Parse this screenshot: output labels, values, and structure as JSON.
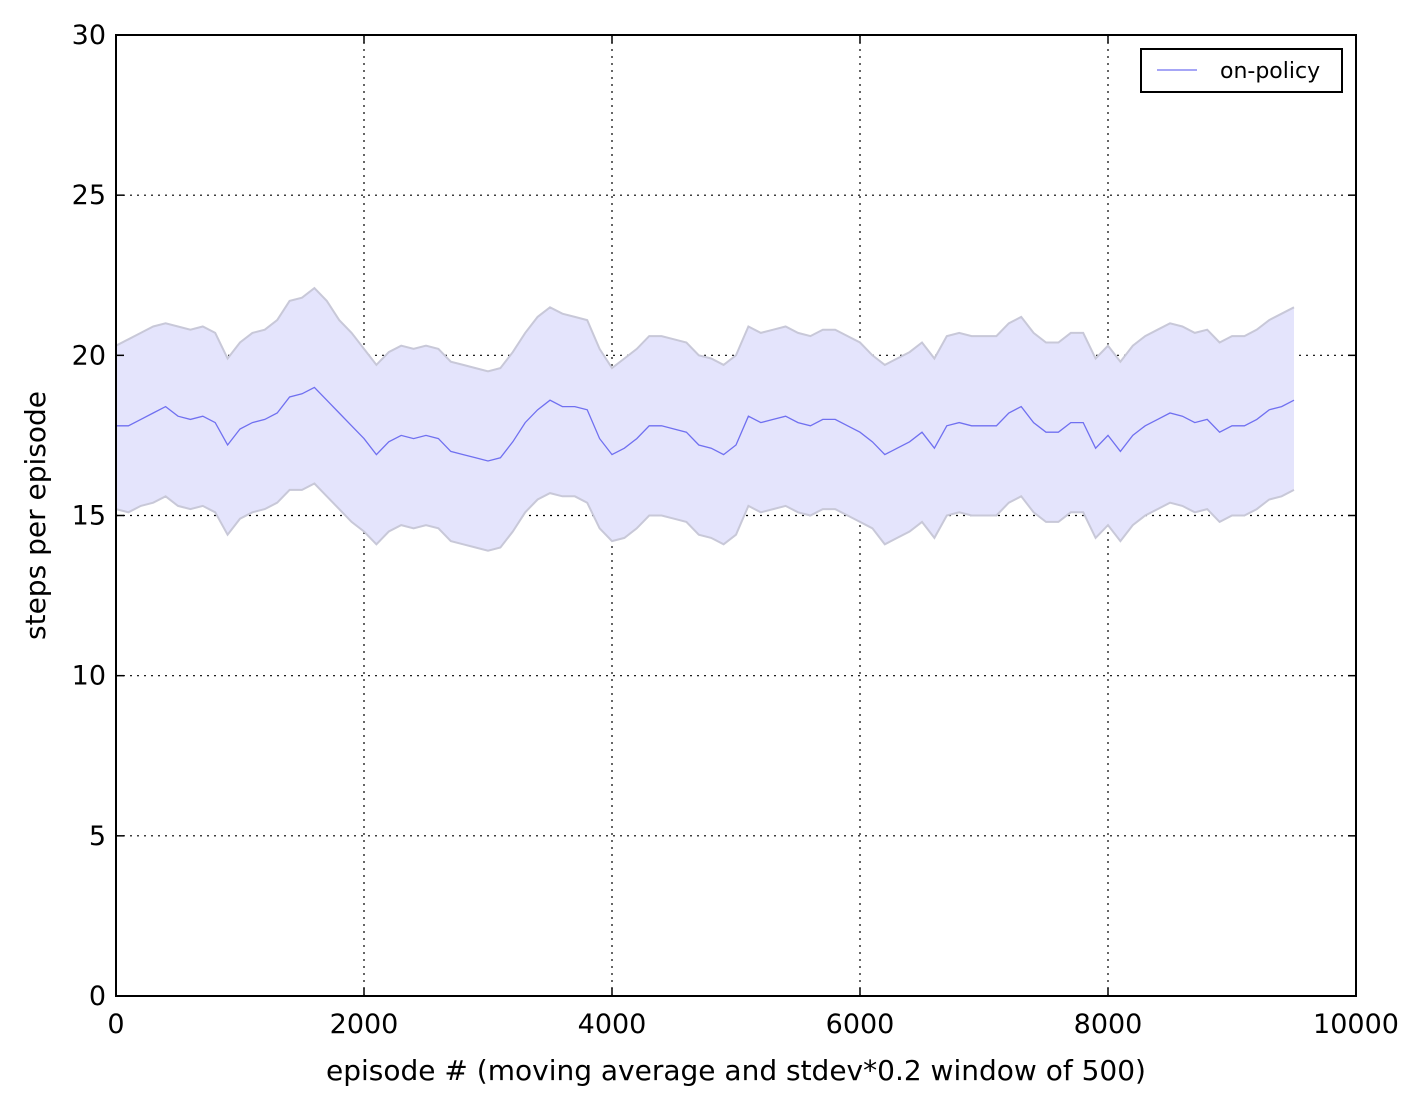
{
  "chart_data": {
    "type": "line",
    "title": "",
    "xlabel": "episode # (moving average and stdev*0.2 window of 500)",
    "ylabel": "steps per episode",
    "xlim": [
      0,
      10000
    ],
    "ylim": [
      0,
      30
    ],
    "xticks": [
      0,
      2000,
      4000,
      6000,
      8000,
      10000
    ],
    "xtick_labels": [
      "0",
      "2000",
      "4000",
      "6000",
      "8000",
      "10000"
    ],
    "yticks": [
      0,
      5,
      10,
      15,
      20,
      25,
      30
    ],
    "ytick_labels": [
      "0",
      "5",
      "10",
      "15",
      "20",
      "25",
      "30"
    ],
    "grid": true,
    "legend_position": "top-right",
    "series": [
      {
        "name": "on-policy",
        "line_color": "#7070f0",
        "band_color": "#e4e4fc",
        "band_edge_color": "#c8c8d8",
        "x": [
          0,
          100,
          200,
          300,
          400,
          500,
          600,
          700,
          800,
          900,
          1000,
          1100,
          1200,
          1300,
          1400,
          1500,
          1600,
          1700,
          1800,
          1900,
          2000,
          2100,
          2200,
          2300,
          2400,
          2500,
          2600,
          2700,
          2800,
          2900,
          3000,
          3100,
          3200,
          3300,
          3400,
          3500,
          3600,
          3700,
          3800,
          3900,
          4000,
          4100,
          4200,
          4300,
          4400,
          4500,
          4600,
          4700,
          4800,
          4900,
          5000,
          5100,
          5200,
          5300,
          5400,
          5500,
          5600,
          5700,
          5800,
          5900,
          6000,
          6100,
          6200,
          6300,
          6400,
          6500,
          6600,
          6700,
          6800,
          6900,
          7000,
          7100,
          7200,
          7300,
          7400,
          7500,
          7600,
          7700,
          7800,
          7900,
          8000,
          8100,
          8200,
          8300,
          8400,
          8500,
          8600,
          8700,
          8800,
          8900,
          9000,
          9100,
          9200,
          9300,
          9400,
          9500
        ],
        "mean": [
          17.8,
          17.8,
          18.0,
          18.2,
          18.4,
          18.1,
          18.0,
          18.1,
          17.9,
          17.2,
          17.7,
          17.9,
          18.0,
          18.2,
          18.7,
          18.8,
          19.0,
          18.6,
          18.2,
          17.8,
          17.4,
          16.9,
          17.3,
          17.5,
          17.4,
          17.5,
          17.4,
          17.0,
          16.9,
          16.8,
          16.7,
          16.8,
          17.3,
          17.9,
          18.3,
          18.6,
          18.4,
          18.4,
          18.3,
          17.4,
          16.9,
          17.1,
          17.4,
          17.8,
          17.8,
          17.7,
          17.6,
          17.2,
          17.1,
          16.9,
          17.2,
          18.1,
          17.9,
          18.0,
          18.1,
          17.9,
          17.8,
          18.0,
          18.0,
          17.8,
          17.6,
          17.3,
          16.9,
          17.1,
          17.3,
          17.6,
          17.1,
          17.8,
          17.9,
          17.8,
          17.8,
          17.8,
          18.2,
          18.4,
          17.9,
          17.6,
          17.6,
          17.9,
          17.9,
          17.1,
          17.5,
          17.0,
          17.5,
          17.8,
          18.0,
          18.2,
          18.1,
          17.9,
          18.0,
          17.6,
          17.8,
          17.8,
          18.0,
          18.3,
          18.4,
          18.6
        ],
        "upper": [
          20.3,
          20.5,
          20.7,
          20.9,
          21.0,
          20.9,
          20.8,
          20.9,
          20.7,
          19.9,
          20.4,
          20.7,
          20.8,
          21.1,
          21.7,
          21.8,
          22.1,
          21.7,
          21.1,
          20.7,
          20.2,
          19.7,
          20.1,
          20.3,
          20.2,
          20.3,
          20.2,
          19.8,
          19.7,
          19.6,
          19.5,
          19.6,
          20.1,
          20.7,
          21.2,
          21.5,
          21.3,
          21.2,
          21.1,
          20.2,
          19.6,
          19.9,
          20.2,
          20.6,
          20.6,
          20.5,
          20.4,
          20.0,
          19.9,
          19.7,
          20.0,
          20.9,
          20.7,
          20.8,
          20.9,
          20.7,
          20.6,
          20.8,
          20.8,
          20.6,
          20.4,
          20.0,
          19.7,
          19.9,
          20.1,
          20.4,
          19.9,
          20.6,
          20.7,
          20.6,
          20.6,
          20.6,
          21.0,
          21.2,
          20.7,
          20.4,
          20.4,
          20.7,
          20.7,
          19.9,
          20.3,
          19.8,
          20.3,
          20.6,
          20.8,
          21.0,
          20.9,
          20.7,
          20.8,
          20.4,
          20.6,
          20.6,
          20.8,
          21.1,
          21.3,
          21.5
        ],
        "lower": [
          15.2,
          15.1,
          15.3,
          15.4,
          15.6,
          15.3,
          15.2,
          15.3,
          15.1,
          14.4,
          14.9,
          15.1,
          15.2,
          15.4,
          15.8,
          15.8,
          16.0,
          15.6,
          15.2,
          14.8,
          14.5,
          14.1,
          14.5,
          14.7,
          14.6,
          14.7,
          14.6,
          14.2,
          14.1,
          14.0,
          13.9,
          14.0,
          14.5,
          15.1,
          15.5,
          15.7,
          15.6,
          15.6,
          15.4,
          14.6,
          14.2,
          14.3,
          14.6,
          15.0,
          15.0,
          14.9,
          14.8,
          14.4,
          14.3,
          14.1,
          14.4,
          15.3,
          15.1,
          15.2,
          15.3,
          15.1,
          15.0,
          15.2,
          15.2,
          15.0,
          14.8,
          14.6,
          14.1,
          14.3,
          14.5,
          14.8,
          14.3,
          15.0,
          15.1,
          15.0,
          15.0,
          15.0,
          15.4,
          15.6,
          15.1,
          14.8,
          14.8,
          15.1,
          15.1,
          14.3,
          14.7,
          14.2,
          14.7,
          15.0,
          15.2,
          15.4,
          15.3,
          15.1,
          15.2,
          14.8,
          15.0,
          15.0,
          15.2,
          15.5,
          15.6,
          15.8
        ]
      }
    ]
  }
}
